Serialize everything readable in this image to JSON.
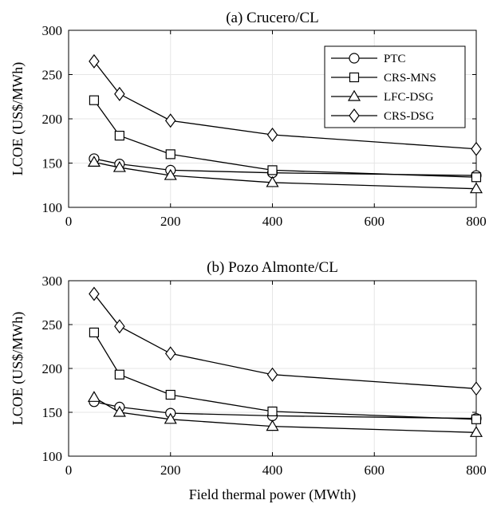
{
  "chart_data": [
    {
      "type": "line",
      "title": "(a) Crucero/CL",
      "xlabel": "",
      "ylabel": "LCOE (US$/MWh)",
      "xlim": [
        0,
        800
      ],
      "ylim": [
        100,
        300
      ],
      "xticks": [
        "0",
        "200",
        "400",
        "600",
        "800"
      ],
      "yticks": [
        "100",
        "150",
        "200",
        "250",
        "300"
      ],
      "grid": true,
      "legend": "top-right",
      "x": [
        50,
        100,
        200,
        400,
        800
      ],
      "series": [
        {
          "name": "PTC",
          "marker": "circle",
          "values": [
            155,
            149,
            142,
            139,
            136
          ]
        },
        {
          "name": "CRS-MNS",
          "marker": "square",
          "values": [
            221,
            181,
            160,
            142,
            134
          ]
        },
        {
          "name": "LFC-DSG",
          "marker": "triangle",
          "values": [
            151,
            145,
            136,
            128,
            121
          ]
        },
        {
          "name": "CRS-DSG",
          "marker": "diamond",
          "values": [
            265,
            228,
            198,
            182,
            166
          ]
        }
      ]
    },
    {
      "type": "line",
      "title": "(b) Pozo Almonte/CL",
      "xlabel": "Field thermal power (MWth)",
      "ylabel": "LCOE (US$/MWh)",
      "xlim": [
        0,
        800
      ],
      "ylim": [
        100,
        300
      ],
      "xticks": [
        "0",
        "200",
        "400",
        "600",
        "800"
      ],
      "yticks": [
        "100",
        "150",
        "200",
        "250",
        "300"
      ],
      "grid": true,
      "x": [
        50,
        100,
        200,
        400,
        800
      ],
      "series": [
        {
          "marker": "circle",
          "values": [
            162,
            156,
            149,
            146,
            143
          ]
        },
        {
          "marker": "square",
          "values": [
            241,
            193,
            170,
            151,
            142
          ]
        },
        {
          "marker": "triangle",
          "values": [
            167,
            150,
            142,
            134,
            127
          ]
        },
        {
          "marker": "diamond",
          "values": [
            285,
            248,
            217,
            193,
            177
          ]
        }
      ]
    }
  ]
}
